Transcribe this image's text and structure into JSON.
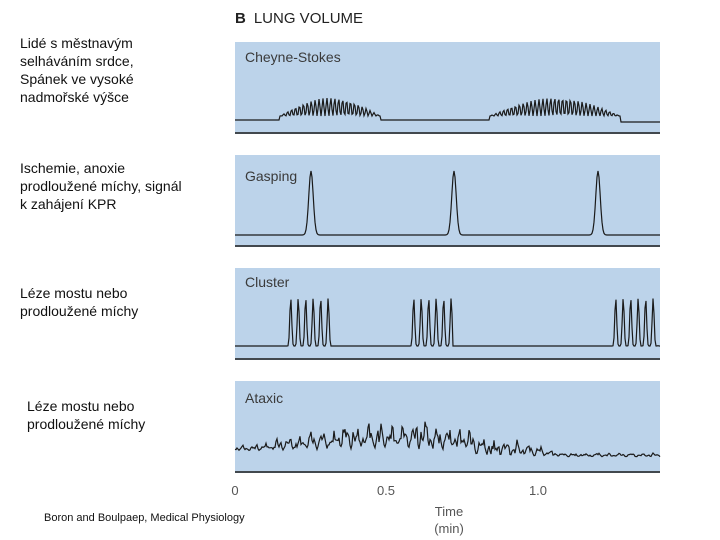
{
  "side_labels": [
    "Lidé s městnavým\nselháváním srdce,\nSpánek ve vysoké\nnadmořské výšce",
    "Ischemie, anoxie\nprodloužené míchy, signál\nk zahájení KPR",
    "Léze mostu nebo\nprodloužené míchy",
    "Léze mostu nebo\nprodloužené míchy"
  ],
  "figure": {
    "panel_letter": "B",
    "title": "LUNG VOLUME",
    "panels": [
      {
        "label": "Cheyne-Stokes"
      },
      {
        "label": "Gasping"
      },
      {
        "label": "Cluster"
      },
      {
        "label": "Ataxic"
      }
    ],
    "x_axis": {
      "ticks": [
        "0",
        "0.5",
        "1.0"
      ],
      "label_line1": "Time",
      "label_line2": "(min)"
    }
  },
  "citation": "Boron and Boulpaep, Medical Physiology",
  "colors": {
    "panel_bg": "#bcd3ea",
    "trace": "#1a1a1a",
    "panel_label": "#3a3a3a"
  }
}
